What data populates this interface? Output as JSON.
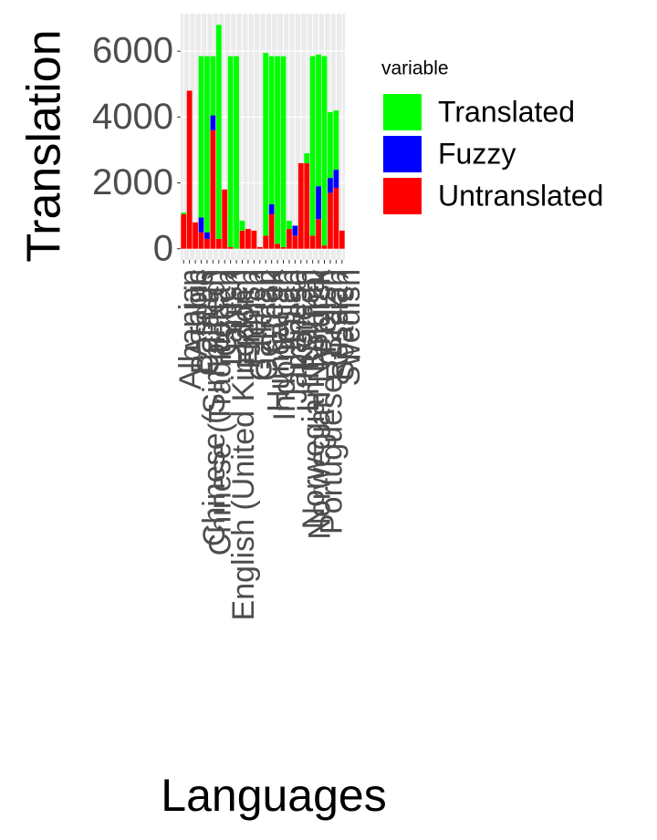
{
  "chart_data": {
    "type": "bar",
    "stacked": true,
    "xlabel": "Languages",
    "ylabel": "Translation",
    "legend_title": "variable",
    "categories": [
      "Albanian",
      "Arabic",
      "Basque",
      "Catalan",
      "Chinese (Simplified)",
      "Chinese (Traditional)",
      "Czech",
      "Danish",
      "Dutch",
      "English (United Kingdom)",
      "Finnish",
      "French",
      "Galician",
      "German",
      "Greek",
      "Hungarian",
      "Indonesian",
      "Italian",
      "Japanese",
      "Korean",
      "Lithuanian",
      "Norwegian Bokmål",
      "Norwegian Nynorsk",
      "Polish",
      "Portuguese (Brazil)",
      "Russian",
      "Spanish",
      "Swedish"
    ],
    "series": [
      {
        "name": "Translated",
        "color": "#00ff00",
        "values": [
          50,
          0,
          0,
          4900,
          5350,
          1800,
          6500,
          0,
          5800,
          5850,
          300,
          0,
          0,
          0,
          5550,
          4500,
          5700,
          5800,
          250,
          0,
          0,
          300,
          5450,
          4000,
          5750,
          2000,
          1800,
          0
        ]
      },
      {
        "name": "Fuzzy",
        "color": "#0000ff",
        "values": [
          0,
          0,
          0,
          450,
          200,
          450,
          0,
          0,
          0,
          0,
          0,
          0,
          0,
          0,
          0,
          300,
          0,
          0,
          0,
          300,
          0,
          0,
          0,
          1000,
          0,
          450,
          550,
          0
        ]
      },
      {
        "name": "Untranslated",
        "color": "#ff0000",
        "values": [
          1050,
          4800,
          800,
          500,
          300,
          3600,
          300,
          1800,
          50,
          0,
          550,
          600,
          550,
          50,
          400,
          1050,
          150,
          50,
          600,
          400,
          2600,
          2600,
          400,
          900,
          100,
          1700,
          1850,
          550
        ]
      }
    ],
    "ylim": [
      -340,
      7140
    ],
    "yticks": [
      0,
      2000,
      4000,
      6000
    ],
    "grid": true,
    "legend": "right"
  }
}
